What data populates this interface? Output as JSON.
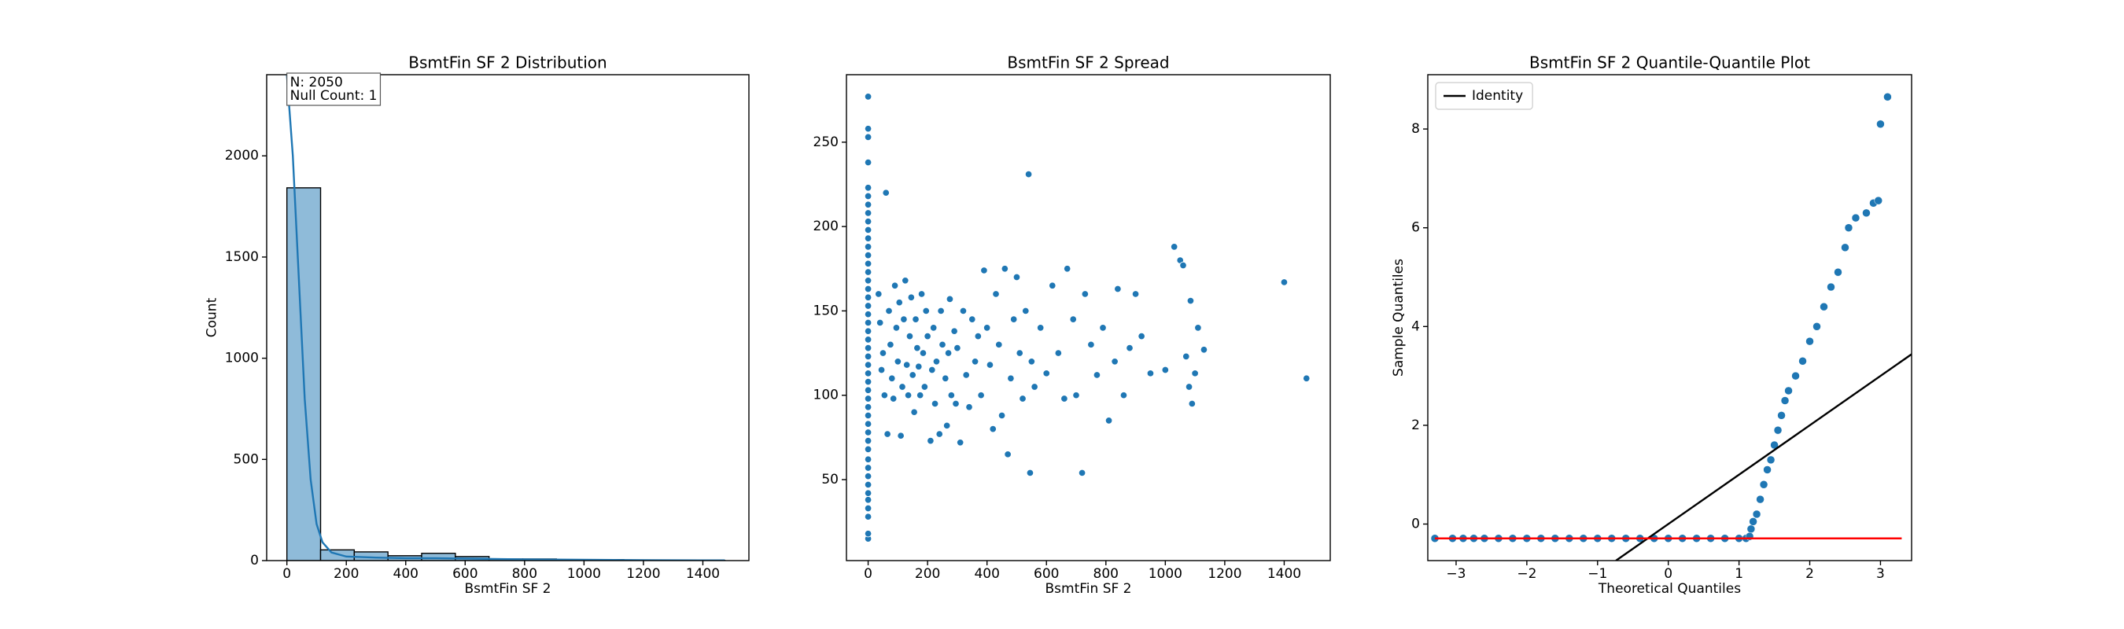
{
  "chart_data": [
    {
      "type": "histogram",
      "title": "BsmtFin SF 2 Distribution",
      "xlabel": "BsmtFin SF 2",
      "ylabel": "Count",
      "annotation": [
        "N: 2050",
        "Null Count: 1"
      ],
      "xlim": [
        -68,
        1555
      ],
      "ylim": [
        0,
        2401
      ],
      "xticks": [
        0,
        200,
        400,
        600,
        800,
        1000,
        1200,
        1400
      ],
      "yticks": [
        0,
        500,
        1000,
        1500,
        2000
      ],
      "series": [
        {
          "color": "#8fbbd9",
          "bins": [
            0,
            113.4,
            226.8,
            340.2,
            453.6,
            567,
            680.4,
            793.8,
            907.2,
            1020.6,
            1134,
            1247.4,
            1360.8,
            1474.2
          ],
          "values": [
            1842,
            53,
            43,
            24,
            36,
            20,
            8,
            8,
            5,
            5,
            3,
            2,
            1
          ]
        },
        {
          "type": "line",
          "color": "#1f77b4",
          "x": [
            0,
            20,
            40,
            60,
            80,
            100,
            120,
            150,
            200,
            300,
            400,
            500,
            600,
            800,
            1000,
            1200,
            1474
          ],
          "values": [
            2400,
            2000,
            1400,
            800,
            400,
            180,
            90,
            40,
            20,
            15,
            12,
            12,
            10,
            6,
            4,
            2,
            1
          ]
        }
      ]
    },
    {
      "type": "scatter",
      "title": "BsmtFin SF 2 Spread",
      "xlabel": "BsmtFin SF 2",
      "xlim": [
        -73,
        1555
      ],
      "ylim": [
        2,
        290
      ],
      "xticks": [
        0,
        200,
        400,
        600,
        800,
        1000,
        1200,
        1400
      ],
      "yticks": [
        50,
        100,
        150,
        200,
        250
      ],
      "series": [
        {
          "color": "#1f77b4",
          "x": [
            0,
            0,
            0,
            0,
            0,
            0,
            0,
            0,
            0,
            0,
            0,
            0,
            0,
            0,
            0,
            0,
            0,
            0,
            0,
            0,
            0,
            0,
            0,
            0,
            0,
            0,
            0,
            0,
            0,
            0,
            0,
            0,
            0,
            0,
            0,
            0,
            0,
            0,
            0,
            0,
            0,
            0,
            0,
            0,
            0,
            0,
            35,
            40,
            45,
            50,
            55,
            60,
            65,
            70,
            75,
            80,
            85,
            90,
            95,
            100,
            105,
            110,
            115,
            120,
            125,
            130,
            135,
            140,
            145,
            150,
            155,
            160,
            165,
            170,
            175,
            180,
            185,
            190,
            195,
            200,
            210,
            215,
            220,
            225,
            230,
            240,
            245,
            250,
            260,
            265,
            270,
            275,
            280,
            290,
            295,
            300,
            310,
            320,
            330,
            340,
            350,
            360,
            370,
            380,
            390,
            400,
            410,
            420,
            430,
            440,
            450,
            460,
            470,
            480,
            490,
            500,
            510,
            520,
            530,
            540,
            545,
            550,
            560,
            580,
            600,
            620,
            640,
            660,
            670,
            690,
            700,
            720,
            730,
            750,
            770,
            790,
            810,
            830,
            840,
            860,
            880,
            900,
            920,
            950,
            1000,
            1030,
            1050,
            1060,
            1070,
            1080,
            1085,
            1090,
            1100,
            1110,
            1130,
            1400,
            1475
          ],
          "values": [
            15,
            18,
            28,
            33,
            38,
            42,
            47,
            52,
            57,
            62,
            68,
            73,
            78,
            83,
            88,
            93,
            98,
            103,
            108,
            113,
            118,
            123,
            128,
            133,
            138,
            143,
            148,
            153,
            158,
            163,
            168,
            173,
            178,
            183,
            188,
            193,
            198,
            203,
            208,
            213,
            218,
            223,
            238,
            253,
            258,
            277,
            160,
            143,
            115,
            125,
            100,
            220,
            77,
            150,
            130,
            110,
            98,
            165,
            140,
            120,
            155,
            76,
            105,
            145,
            168,
            118,
            100,
            135,
            158,
            112,
            90,
            145,
            128,
            117,
            100,
            160,
            125,
            105,
            150,
            135,
            73,
            115,
            140,
            95,
            120,
            77,
            150,
            130,
            110,
            82,
            125,
            157,
            100,
            138,
            95,
            128,
            72,
            150,
            112,
            93,
            145,
            120,
            135,
            100,
            174,
            140,
            118,
            80,
            160,
            130,
            88,
            175,
            65,
            110,
            145,
            170,
            125,
            98,
            150,
            231,
            54,
            120,
            105,
            140,
            113,
            165,
            125,
            98,
            175,
            145,
            100,
            54,
            160,
            130,
            112,
            140,
            85,
            120,
            163,
            100,
            128,
            160,
            135,
            113,
            115,
            188,
            180,
            177,
            123,
            105,
            156,
            95,
            113,
            140,
            127,
            167,
            110
          ]
        }
      ]
    },
    {
      "type": "scatter",
      "title": "BsmtFin SF 2 Quantile-Quantile Plot",
      "xlabel": "Theoretical Quantiles",
      "ylabel": "Sample Quantiles",
      "xlim": [
        -3.4,
        3.44
      ],
      "ylim": [
        -0.74,
        9.1
      ],
      "legend": "upper left",
      "xticks": [
        {
          "value": -3,
          "label": "−3"
        },
        {
          "value": -2,
          "label": "−2"
        },
        {
          "value": -1,
          "label": "−1"
        },
        0,
        1,
        2,
        3
      ],
      "yticks": [
        0,
        2,
        4,
        6,
        8
      ],
      "series": [
        {
          "color": "#1f77b4",
          "x": [
            -3.3,
            -3.05,
            -2.9,
            -2.75,
            -2.6,
            -2.4,
            -2.2,
            -2.0,
            -1.8,
            -1.6,
            -1.4,
            -1.2,
            -1.0,
            -0.8,
            -0.6,
            -0.4,
            -0.2,
            0,
            0.2,
            0.4,
            0.6,
            0.8,
            1.0,
            1.1,
            1.15,
            1.17,
            1.2,
            1.25,
            1.3,
            1.35,
            1.4,
            1.45,
            1.5,
            1.55,
            1.6,
            1.65,
            1.7,
            1.8,
            1.9,
            2.0,
            2.1,
            2.2,
            2.3,
            2.4,
            2.5,
            2.55,
            2.65,
            2.8,
            2.9,
            2.97,
            3.0,
            3.1
          ],
          "values": [
            -0.29,
            -0.29,
            -0.29,
            -0.29,
            -0.29,
            -0.29,
            -0.29,
            -0.29,
            -0.29,
            -0.29,
            -0.29,
            -0.29,
            -0.29,
            -0.29,
            -0.29,
            -0.29,
            -0.29,
            -0.29,
            -0.29,
            -0.29,
            -0.29,
            -0.29,
            -0.29,
            -0.29,
            -0.25,
            -0.1,
            0.05,
            0.2,
            0.5,
            0.8,
            1.1,
            1.3,
            1.6,
            1.9,
            2.2,
            2.5,
            2.7,
            3.0,
            3.3,
            3.7,
            4.0,
            4.4,
            4.8,
            5.1,
            5.6,
            6.0,
            6.2,
            6.3,
            6.5,
            6.55,
            8.1,
            8.65
          ]
        },
        {
          "type": "line",
          "name": "Identity",
          "color": "#000000",
          "x": [
            -0.74,
            3.44
          ],
          "values": [
            -0.74,
            3.44
          ]
        },
        {
          "type": "line",
          "color": "#ff0000",
          "x": [
            -3.3,
            3.3
          ],
          "values": [
            -0.29,
            -0.29
          ]
        }
      ]
    }
  ]
}
